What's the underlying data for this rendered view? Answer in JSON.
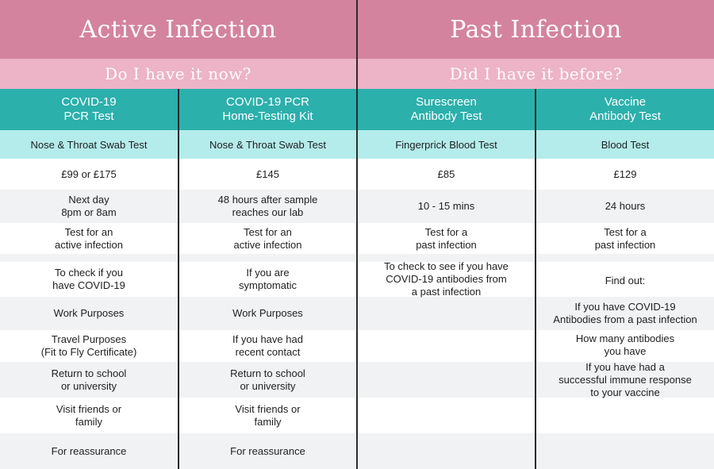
{
  "headers": {
    "active_title": "Active Infection",
    "past_title": "Past Infection",
    "active_sub": "Do I have it now?",
    "past_sub": "Did I have it before?"
  },
  "columns": [
    {
      "name": "COVID-19\nPCR Test",
      "type": "Nose & Throat Swab Test"
    },
    {
      "name": "COVID-19 PCR\nHome-Testing Kit",
      "type": "Nose & Throat Swab Test"
    },
    {
      "name": "Surescreen\nAntibody Test",
      "type": "Fingerprick Blood Test"
    },
    {
      "name": "Vaccine\nAntibody Test",
      "type": "Blood Test"
    }
  ],
  "rows": [
    [
      "£99 or £175",
      "£145",
      "£85",
      "£129"
    ],
    [
      "Next day\n8pm or 8am",
      "48 hours after sample\nreaches our lab",
      "10 - 15 mins",
      "24 hours"
    ],
    [
      "Test for an\nactive infection",
      "Test for an\nactive infection",
      "Test for a\npast infection",
      "Test for a\npast infection"
    ],
    [
      "To check if you\nhave COVID-19",
      "If you are\nsymptomatic",
      "To check to see if you have\nCOVID-19 antibodies from\na past infection",
      "Find out:"
    ],
    [
      "Work Purposes",
      "Work Purposes",
      "",
      "If you have COVID-19\nAntibodies from a past infection"
    ],
    [
      "Travel Purposes\n(Fit to Fly Certificate)",
      "If you have had\nrecent contact",
      "",
      "How many antibodies\nyou have"
    ],
    [
      "Return to school\nor university",
      "Return to school\nor university",
      "",
      "If you have had a\nsuccessful immune response\nto your vaccine"
    ],
    [
      "Visit friends or\nfamily",
      "Visit friends or\nfamily",
      "",
      ""
    ],
    [
      "For reassurance",
      "For reassurance",
      "",
      ""
    ]
  ],
  "colors": {
    "header_dark": "#d4839f",
    "header_light": "#edb3c7",
    "teal": "#2bb0ac",
    "teal_light": "#b4eceb",
    "row_alt": "#f1f2f4"
  }
}
